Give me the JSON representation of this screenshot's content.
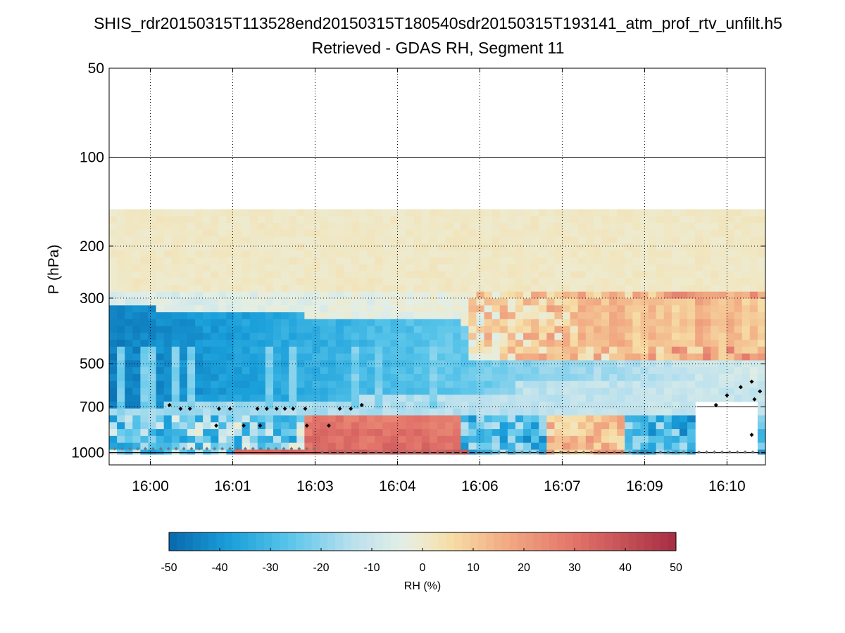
{
  "chart_data": {
    "type": "heatmap",
    "title": "SHIS_rdr20150315T113528end20150315T180540sdr20150315T193141_atm_prof_rtv_unfilt.h5",
    "subtitle": "Retrieved - GDAS RH, Segment 11",
    "ylabel": "P (hPa)",
    "y_scale": "log",
    "y_reversed": true,
    "ylim": [
      50,
      1100
    ],
    "y_ticks": [
      50,
      100,
      200,
      300,
      500,
      700,
      1000
    ],
    "y_tick_labels": [
      "50",
      "100",
      "200",
      "300",
      "500",
      "700",
      "1000"
    ],
    "x_units": "minutes after 16:00",
    "xlim": [
      -0.75,
      11.2
    ],
    "x_ticks": [
      0,
      1.5,
      3,
      4.5,
      6,
      7.5,
      9,
      10.5
    ],
    "x_tick_labels": [
      "16:00",
      "16:01",
      "16:03",
      "16:04",
      "16:06",
      "16:07",
      "16:09",
      "16:10"
    ],
    "grid": true,
    "colorbar": {
      "label": "RH (%)",
      "vmin": -50,
      "vmax": 50,
      "ticks": [
        -50,
        -40,
        -30,
        -20,
        -10,
        0,
        10,
        20,
        30,
        40,
        50
      ],
      "tick_labels": [
        "-50",
        "-40",
        "-30",
        "-20",
        "-10",
        "0",
        "10",
        "20",
        "30",
        "40",
        "50"
      ],
      "colormap": "diverging blue-white-red",
      "stops": [
        {
          "value": -50,
          "color": "#0868ac"
        },
        {
          "value": -38,
          "color": "#1a9fda"
        },
        {
          "value": -26,
          "color": "#5bc6ea"
        },
        {
          "value": -14,
          "color": "#b9e0ee"
        },
        {
          "value": -4,
          "color": "#e2eee6"
        },
        {
          "value": 0,
          "color": "#eeeacd"
        },
        {
          "value": 6,
          "color": "#f6dca4"
        },
        {
          "value": 16,
          "color": "#f2ad84"
        },
        {
          "value": 30,
          "color": "#e2736a"
        },
        {
          "value": 50,
          "color": "#a52d42"
        }
      ]
    },
    "field_description": "RH difference (retrieved minus GDAS) vs time and pressure; ~1 at 150-280 hPa, strongly negative (-45) at 320-700 hPa early in the segment, band rising to ~400 hPa and weakening later; positive (+10 to +25) at 300-500 hPa after 16:08; near-surface 700-1000 hPa layer mixed, strongly positive (+30 to +45) around 16:03-16:05; no data above 150 hPa",
    "cloud_top_markers": [
      {
        "t": 0.35,
        "p": 690
      },
      {
        "t": 0.55,
        "p": 710
      },
      {
        "t": 0.72,
        "p": 710
      },
      {
        "t": 1.25,
        "p": 710
      },
      {
        "t": 1.45,
        "p": 710
      },
      {
        "t": 1.95,
        "p": 710
      },
      {
        "t": 2.12,
        "p": 710
      },
      {
        "t": 2.3,
        "p": 710
      },
      {
        "t": 2.45,
        "p": 710
      },
      {
        "t": 2.6,
        "p": 710
      },
      {
        "t": 2.82,
        "p": 710
      },
      {
        "t": 3.45,
        "p": 710
      },
      {
        "t": 3.65,
        "p": 710
      },
      {
        "t": 3.85,
        "p": 690
      },
      {
        "t": 1.2,
        "p": 810
      },
      {
        "t": 1.7,
        "p": 810
      },
      {
        "t": 2.0,
        "p": 810
      },
      {
        "t": 2.85,
        "p": 810
      },
      {
        "t": 3.25,
        "p": 810
      },
      {
        "t": 10.3,
        "p": 690
      },
      {
        "t": 10.5,
        "p": 640
      },
      {
        "t": 10.75,
        "p": 600
      },
      {
        "t": 10.95,
        "p": 575
      },
      {
        "t": 11.1,
        "p": 620
      },
      {
        "t": 11.0,
        "p": 660
      },
      {
        "t": 10.95,
        "p": 870
      }
    ],
    "surface_markers_pressure": 1000
  }
}
